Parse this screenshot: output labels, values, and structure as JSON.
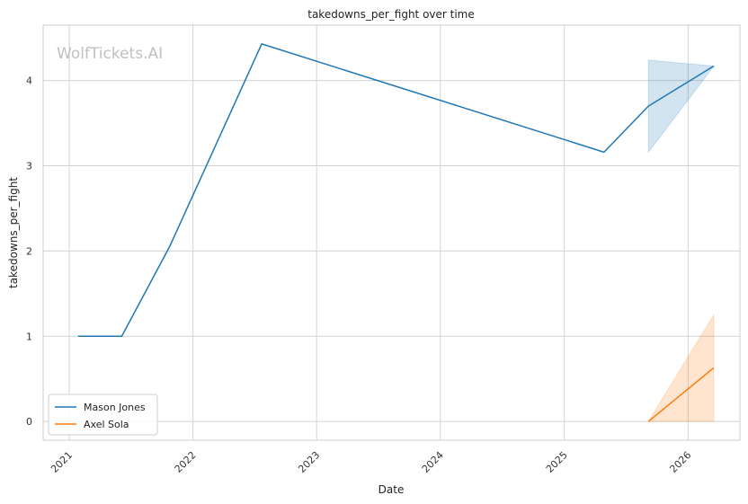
{
  "chart_data": {
    "type": "line",
    "title": "takedowns_per_fight over time",
    "xlabel": "Date",
    "ylabel": "takedowns_per_fight",
    "watermark": "WolfTickets.AI",
    "x_ticks": [
      "2021",
      "2022",
      "2023",
      "2024",
      "2025",
      "2026"
    ],
    "y_ticks": [
      "0",
      "1",
      "2",
      "3",
      "4"
    ],
    "xlim": [
      "2020-10-16",
      "2026-06-03"
    ],
    "ylim": [
      -0.22,
      4.65
    ],
    "grid": true,
    "legend_position": "lower-left",
    "series": [
      {
        "name": "Mason Jones",
        "color": "#1f77b4",
        "points": [
          {
            "x": "2021-01-27",
            "y": 1.0
          },
          {
            "x": "2021-06-05",
            "y": 1.0
          },
          {
            "x": "2021-10-24",
            "y": 2.05
          },
          {
            "x": "2022-07-23",
            "y": 4.43
          },
          {
            "x": "2025-04-28",
            "y": 3.16
          },
          {
            "x": "2025-09-06",
            "y": 3.7
          },
          {
            "x": "2026-03-18",
            "y": 4.17
          }
        ],
        "band": [
          {
            "x": "2025-09-06",
            "low": 3.16,
            "high": 4.24
          },
          {
            "x": "2026-03-18",
            "low": 4.17,
            "high": 4.17
          }
        ]
      },
      {
        "name": "Axel Sola",
        "color": "#ff7f0e",
        "points": [
          {
            "x": "2025-09-06",
            "y": 0.0
          },
          {
            "x": "2026-03-18",
            "y": 0.63
          }
        ],
        "band": [
          {
            "x": "2025-09-06",
            "low": 0.0,
            "high": 0.0
          },
          {
            "x": "2026-03-18",
            "low": 0.0,
            "high": 1.25
          }
        ]
      }
    ]
  }
}
